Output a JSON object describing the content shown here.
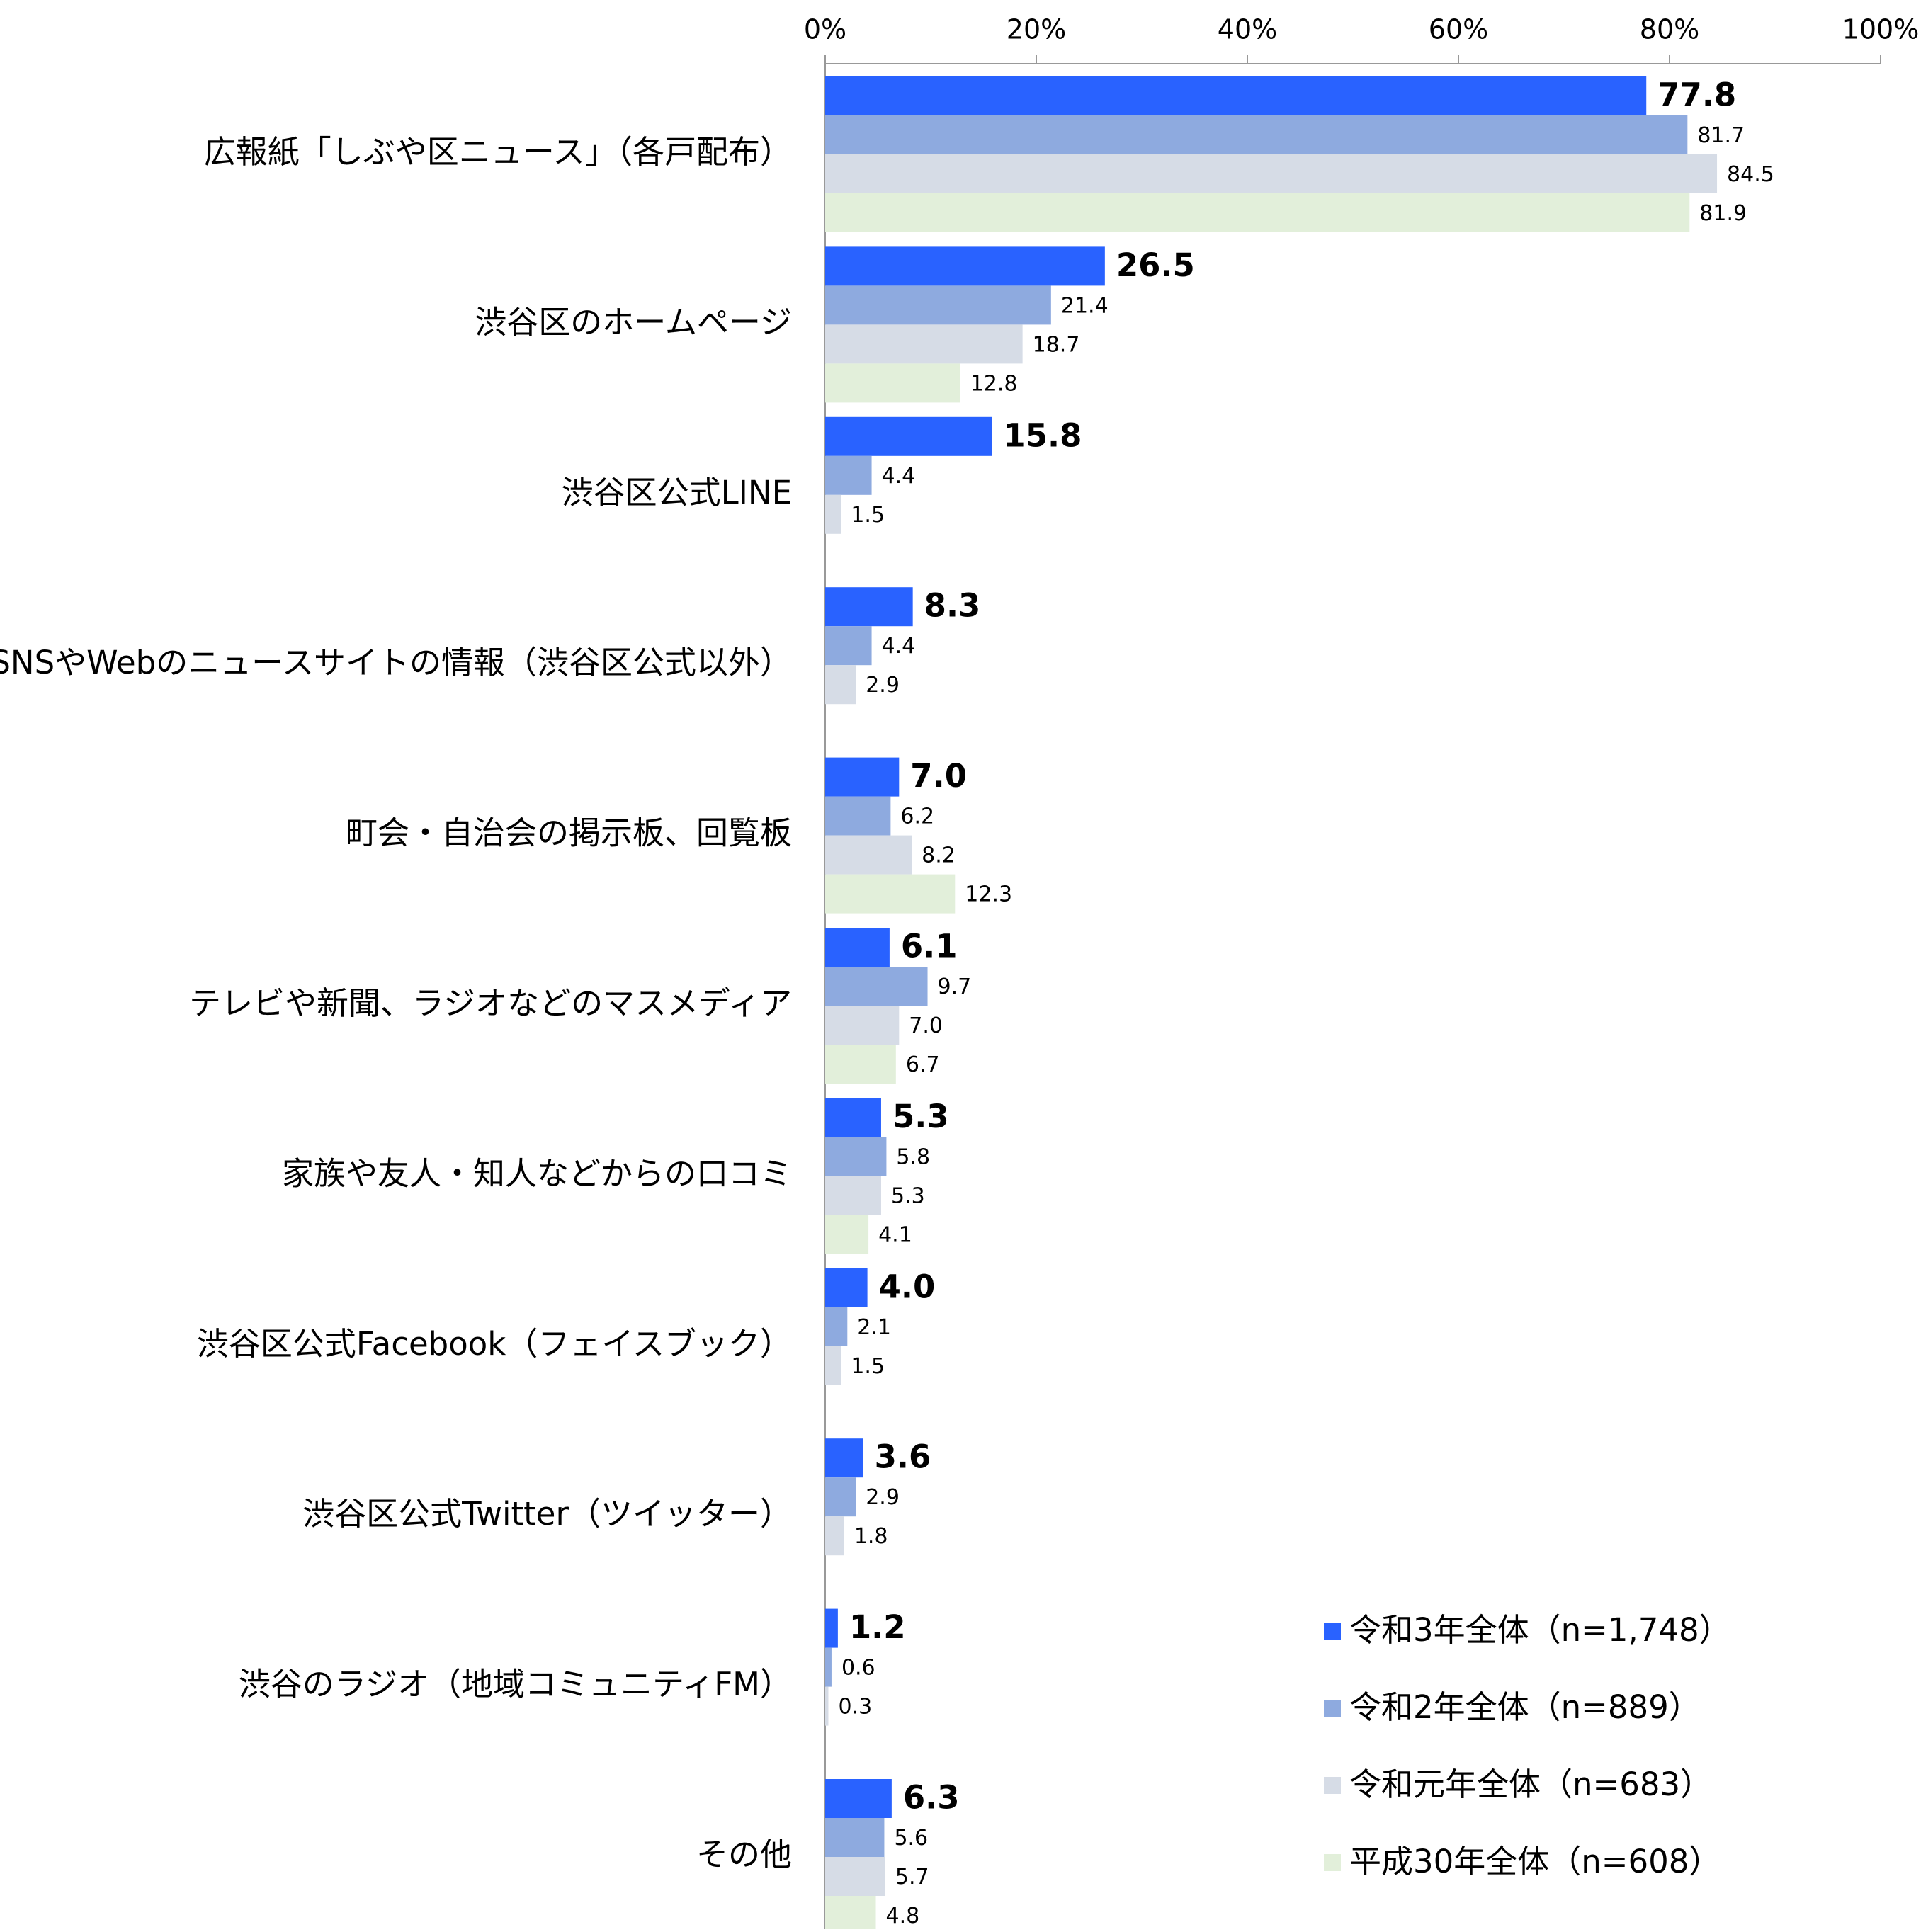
{
  "chart_data": {
    "type": "hbar",
    "categories": [
      "広報紙「しぶや区ニュース」（各戸配布）",
      "渋谷区のホームページ",
      "渋谷区公式LINE",
      "SNSやWebのニュースサイトの情報（渋谷区公式以外）",
      "町会・自治会の掲示板、回覧板",
      "テレビや新聞、ラジオなどのマスメディア",
      "家族や友人・知人などからの口コミ",
      "渋谷区公式Facebook（フェイスブック）",
      "渋谷区公式Twitter（ツイッター）",
      "渋谷のラジオ（地域コミュニティFM）",
      "その他"
    ],
    "series": [
      {
        "name": "令和3年全体（n=1,748）",
        "color": "#2962ff",
        "values": [
          77.8,
          26.5,
          15.8,
          8.3,
          7.0,
          6.1,
          5.3,
          4.0,
          3.6,
          1.2,
          6.3
        ],
        "value_labels": [
          "77.8",
          "26.5",
          "15.8",
          "8.3",
          "7.0",
          "6.1",
          "5.3",
          "4.0",
          "3.6",
          "1.2",
          "6.3"
        ]
      },
      {
        "name": "令和2年全体（n=889）",
        "color": "#8eaadf",
        "values": [
          81.7,
          21.4,
          4.4,
          4.4,
          6.2,
          9.7,
          5.8,
          2.1,
          2.9,
          0.6,
          5.6
        ],
        "value_labels": [
          "81.7",
          "21.4",
          "4.4",
          "4.4",
          "6.2",
          "9.7",
          "5.8",
          "2.1",
          "2.9",
          "0.6",
          "5.6"
        ]
      },
      {
        "name": "令和元年全体（n=683）",
        "color": "#d6dce6",
        "values": [
          84.5,
          18.7,
          1.5,
          2.9,
          8.2,
          7.0,
          5.3,
          1.5,
          1.8,
          0.3,
          5.7
        ],
        "value_labels": [
          "84.5",
          "18.7",
          "1.5",
          "2.9",
          "8.2",
          "7.0",
          "5.3",
          "1.5",
          "1.8",
          "0.3",
          "5.7"
        ]
      },
      {
        "name": "平成30年全体（n=608）",
        "color": "#e2efda",
        "values": [
          81.9,
          12.8,
          null,
          null,
          12.3,
          6.7,
          4.1,
          null,
          null,
          null,
          4.8
        ],
        "value_labels": [
          "81.9",
          "12.8",
          null,
          null,
          "12.3",
          "6.7",
          "4.1",
          null,
          null,
          null,
          "4.8"
        ]
      }
    ],
    "xlim": [
      0,
      100
    ],
    "xticks": [
      {
        "value": 0,
        "label": "0%"
      },
      {
        "value": 20,
        "label": "20%"
      },
      {
        "value": 40,
        "label": "40%"
      },
      {
        "value": 60,
        "label": "60%"
      },
      {
        "value": 80,
        "label": "80%"
      },
      {
        "value": 100,
        "label": "100%"
      }
    ],
    "legend": "bottom-right"
  }
}
